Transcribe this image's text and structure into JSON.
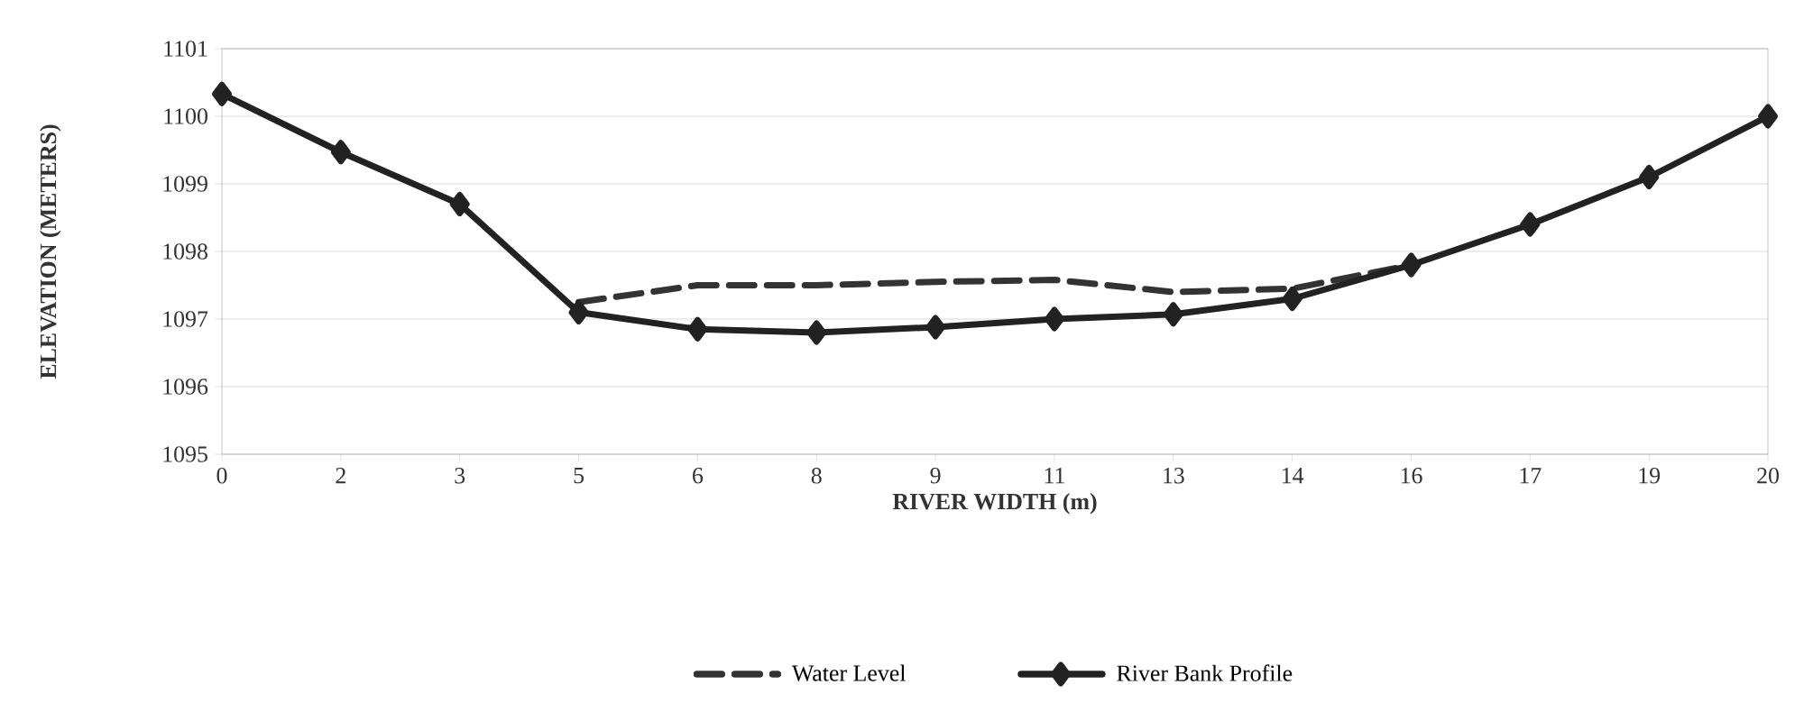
{
  "chart_data": {
    "type": "line",
    "xlabel": "RIVER WIDTH (m)",
    "ylabel": "ELEVATION (METERS)",
    "categories": [
      "0",
      "2",
      "3",
      "5",
      "6",
      "8",
      "9",
      "11",
      "13",
      "14",
      "16",
      "17",
      "19",
      "20"
    ],
    "series": [
      {
        "name": "Water Level",
        "color": "#333333",
        "marker": "none",
        "line_style": "dashed",
        "values": [
          null,
          null,
          null,
          1097.25,
          1097.5,
          1097.5,
          1097.55,
          1097.58,
          1097.4,
          1097.45,
          1097.8,
          null,
          null,
          null
        ]
      },
      {
        "name": "River Bank Profile",
        "color": "#222222",
        "marker": "diamond",
        "line_style": "solid",
        "values": [
          1100.33,
          1099.47,
          1098.7,
          1097.1,
          1096.85,
          1096.8,
          1096.88,
          1097.0,
          1097.07,
          1097.3,
          1097.8,
          1098.4,
          1099.1,
          1100.0
        ]
      }
    ],
    "ylim": [
      1095,
      1101
    ],
    "yticks": [
      1095,
      1096,
      1097,
      1098,
      1099,
      1100,
      1101
    ],
    "grid": "y",
    "legend": "bottom"
  }
}
